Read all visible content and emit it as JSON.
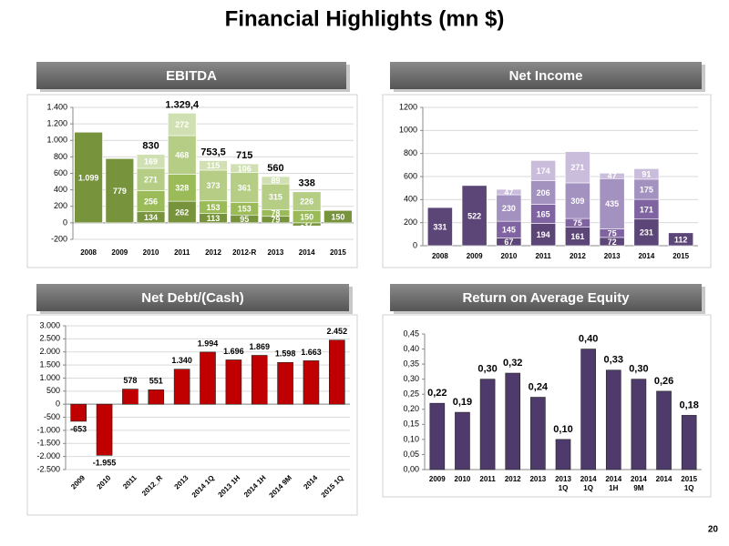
{
  "title": "Financial Highlights (mn $)",
  "page_number": "20",
  "chart_data": [
    {
      "type": "stacked_bar",
      "title": "EBITDA",
      "categories": [
        "2008",
        "2009",
        "2010",
        "2011",
        "2012",
        "2012-R",
        "2013",
        "2014",
        "2015"
      ],
      "series": [
        {
          "color": "#77933c",
          "values": [
            1099,
            779,
            134,
            262,
            113,
            95,
            79,
            -37,
            150
          ],
          "value_labels": [
            "1.099",
            "779",
            "134",
            "262",
            "113",
            "95",
            "79",
            "-37",
            "150"
          ]
        },
        {
          "color": "#9bbb59",
          "values": [
            null,
            null,
            256,
            328,
            153,
            153,
            78,
            150,
            null
          ]
        },
        {
          "color": "#b5cd85",
          "values": [
            null,
            null,
            271,
            468,
            373,
            361,
            315,
            226,
            null
          ]
        },
        {
          "color": "#d0e0b2",
          "values": [
            null,
            null,
            169,
            272,
            115,
            106,
            89,
            null,
            null
          ]
        }
      ],
      "totals": {
        "values": [
          null,
          null,
          830,
          1329.4,
          753.5,
          715,
          560,
          338,
          null
        ],
        "value_labels": [
          null,
          null,
          "830",
          "1.329,4",
          "753,5",
          "715",
          "560",
          "338",
          null
        ]
      },
      "ylim": [
        -200,
        1400
      ],
      "yticks": [
        -200,
        0,
        200,
        400,
        600,
        800,
        {
          "value": 1000,
          "label": "1.000"
        },
        {
          "value": 1200,
          "label": "1.200"
        },
        {
          "value": 1400,
          "label": "1.400"
        }
      ],
      "grid": true
    },
    {
      "type": "stacked_bar",
      "title": "Net Income",
      "categories": [
        "2008",
        "2009",
        "2010",
        "2011",
        "2012",
        "2013",
        "2014",
        "2015"
      ],
      "series": [
        {
          "color": "#5c4677",
          "values": [
            331,
            522,
            67,
            194,
            161,
            72,
            231,
            112
          ]
        },
        {
          "color": "#8064a2",
          "values": [
            null,
            null,
            145,
            165,
            75,
            75,
            171,
            null
          ]
        },
        {
          "color": "#a391c0",
          "values": [
            null,
            null,
            230,
            206,
            309,
            435,
            175,
            null
          ]
        },
        {
          "color": "#c9bddb",
          "values": [
            null,
            null,
            47,
            174,
            271,
            47,
            91,
            null
          ]
        }
      ],
      "ylim": [
        0,
        1200
      ],
      "yticks": [
        0,
        200,
        400,
        600,
        800,
        1000,
        1200
      ],
      "grid": true
    },
    {
      "type": "bar",
      "title": "Net Debt/(Cash)",
      "color": "#c00000",
      "categories": [
        "2009",
        "2010",
        "2011",
        "2012_R",
        "2013",
        "2014 1Q",
        "2013 1H",
        "2014 1H",
        "2014 9M",
        "2014",
        "2015 1Q"
      ],
      "values": [
        -653,
        -1955,
        578,
        551,
        1340,
        1994,
        1696,
        1869,
        1598,
        1663,
        2452
      ],
      "value_labels": [
        "-653",
        "-1.955",
        "578",
        "551",
        "1.340",
        "1.994",
        "1.696",
        "1.869",
        "1.598",
        "1.663",
        "2.452"
      ],
      "ylim": [
        -2500,
        3000
      ],
      "yticks": [
        {
          "value": -2500,
          "label": "-2.500"
        },
        {
          "value": -2000,
          "label": "-2.000"
        },
        {
          "value": -1500,
          "label": "-1.500"
        },
        {
          "value": -1000,
          "label": "-1.000"
        },
        -500,
        0,
        500,
        {
          "value": 1000,
          "label": "1.000"
        },
        {
          "value": 1500,
          "label": "1.500"
        },
        {
          "value": 2000,
          "label": "2.000"
        },
        {
          "value": 2500,
          "label": "2.500"
        },
        {
          "value": 3000,
          "label": "3.000"
        }
      ],
      "grid": true
    },
    {
      "type": "bar",
      "title": "Return on Average Equity",
      "color": "#4f3b6b",
      "categories": [
        "2009",
        "2010",
        "2011",
        "2012",
        "2013",
        "2013 1Q",
        "2014 1Q",
        "2014 1H",
        "2014 9M",
        "2014",
        "2015 1Q"
      ],
      "values": [
        0.22,
        0.19,
        0.3,
        0.32,
        0.24,
        0.1,
        0.4,
        0.33,
        0.3,
        0.26,
        0.18
      ],
      "value_labels": [
        "0,22",
        "0,19",
        "0,30",
        "0,32",
        "0,24",
        "0,10",
        "0,40",
        "0,33",
        "0,30",
        "0,26",
        "0,18"
      ],
      "ylim": [
        0,
        0.45
      ],
      "yticks": [
        {
          "value": 0,
          "label": "0,00"
        },
        {
          "value": 0.05,
          "label": "0,05"
        },
        {
          "value": 0.1,
          "label": "0,10"
        },
        {
          "value": 0.15,
          "label": "0,15"
        },
        {
          "value": 0.2,
          "label": "0,20"
        },
        {
          "value": 0.25,
          "label": "0,25"
        },
        {
          "value": 0.3,
          "label": "0,30"
        },
        {
          "value": 0.35,
          "label": "0,35"
        },
        {
          "value": 0.4,
          "label": "0,40"
        },
        {
          "value": 0.45,
          "label": "0,45"
        }
      ],
      "grid": false
    }
  ]
}
